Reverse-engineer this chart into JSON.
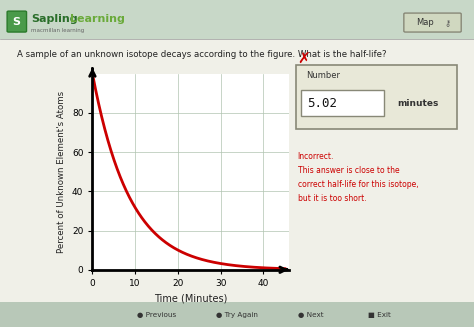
{
  "bg_color": "#d6e4d6",
  "panel_color": "#f0f0e8",
  "title_text": "A sample of an unknown isotope decays according to the figure. What is the half-life?",
  "xlabel": "Time (Minutes)",
  "ylabel": "Percent of Unknown Element's Atoms",
  "x_ticks": [
    0,
    10,
    20,
    30,
    40
  ],
  "y_ticks": [
    0,
    20,
    40,
    60,
    80
  ],
  "xlim": [
    0,
    46
  ],
  "ylim": [
    0,
    100
  ],
  "decay_constant": 0.115,
  "curve_color": "#cc0000",
  "grid_color": "#b0c4b0",
  "header_line_color": "#999999",
  "number_label": "Number",
  "answer_value": "5.02",
  "answer_unit": "minutes",
  "incorrect_text": "Incorrect.\nThis answer is close to the\ncorrect half-life for this isotope,\nbut it is too short.",
  "incorrect_color": "#cc0000",
  "map_text": "Map",
  "box_bg": "#e8e8d8",
  "box_border": "#888877",
  "header_bg": "#c8d8c8",
  "nav_bg": "#b8c8b8"
}
